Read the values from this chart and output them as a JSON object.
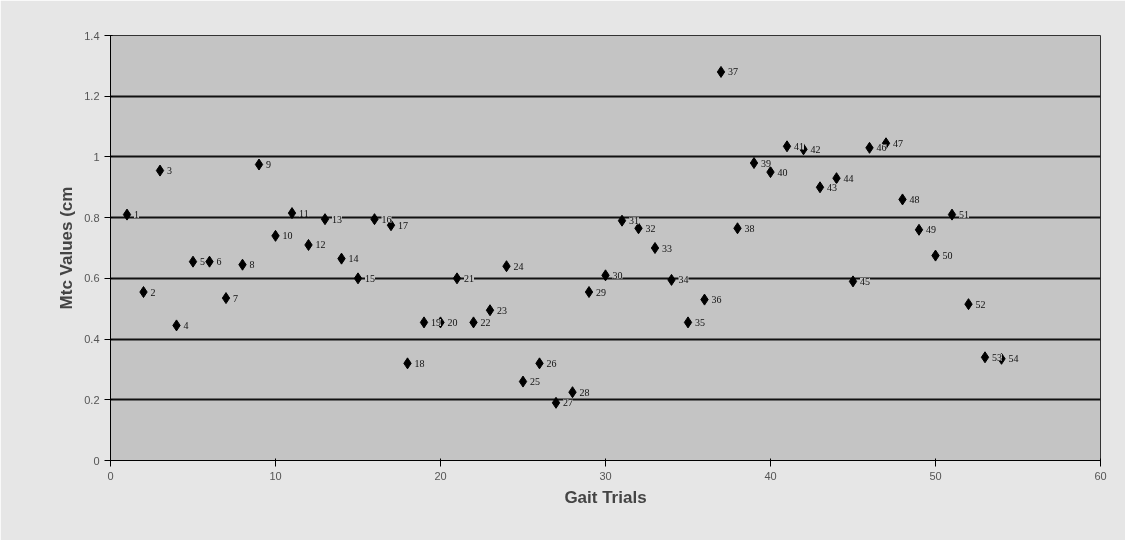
{
  "chart_data": {
    "type": "scatter",
    "xlabel": "Gait Trials",
    "ylabel": "Mtc Values (cm",
    "x": [
      1,
      2,
      3,
      4,
      5,
      6,
      7,
      8,
      9,
      10,
      11,
      12,
      13,
      14,
      15,
      16,
      17,
      18,
      19,
      20,
      21,
      22,
      23,
      24,
      25,
      26,
      27,
      28,
      29,
      30,
      31,
      32,
      33,
      34,
      35,
      36,
      37,
      38,
      39,
      40,
      41,
      42,
      43,
      44,
      45,
      46,
      47,
      48,
      49,
      50,
      51,
      52,
      53,
      54
    ],
    "series": [
      {
        "color": "#000000",
        "values": [
          0.81,
          0.555,
          0.955,
          0.445,
          0.655,
          0.655,
          0.535,
          0.645,
          0.975,
          0.74,
          0.815,
          0.71,
          0.795,
          0.665,
          0.6,
          0.795,
          0.775,
          0.32,
          0.455,
          0.455,
          0.6,
          0.455,
          0.495,
          0.64,
          0.26,
          0.32,
          0.19,
          0.225,
          0.555,
          0.61,
          0.79,
          0.765,
          0.7,
          0.595,
          0.455,
          0.53,
          1.28,
          0.765,
          0.98,
          0.95,
          1.035,
          1.025,
          0.9,
          0.93,
          0.59,
          1.03,
          1.045,
          0.86,
          0.76,
          0.675,
          0.81,
          0.515,
          0.34,
          0.335
        ]
      }
    ],
    "annotations": [
      {
        "text": "1",
        "x": 1,
        "y": 0.81
      },
      {
        "text": "2",
        "x": 2,
        "y": 0.555
      },
      {
        "text": "3",
        "x": 3,
        "y": 0.955
      },
      {
        "text": "4",
        "x": 4,
        "y": 0.445
      },
      {
        "text": "5",
        "x": 5,
        "y": 0.655
      },
      {
        "text": "6",
        "x": 6,
        "y": 0.655
      },
      {
        "text": "7",
        "x": 7,
        "y": 0.535
      },
      {
        "text": "8",
        "x": 8,
        "y": 0.645
      },
      {
        "text": "9",
        "x": 9,
        "y": 0.975
      },
      {
        "text": "10",
        "x": 10,
        "y": 0.74
      },
      {
        "text": "11",
        "x": 11,
        "y": 0.815
      },
      {
        "text": "12",
        "x": 12,
        "y": 0.71
      },
      {
        "text": "13",
        "x": 13,
        "y": 0.795
      },
      {
        "text": "14",
        "x": 14,
        "y": 0.665
      },
      {
        "text": "15",
        "x": 15,
        "y": 0.6
      },
      {
        "text": "16",
        "x": 16,
        "y": 0.795
      },
      {
        "text": "17",
        "x": 17,
        "y": 0.775
      },
      {
        "text": "18",
        "x": 18,
        "y": 0.32
      },
      {
        "text": "19",
        "x": 19,
        "y": 0.455
      },
      {
        "text": "20",
        "x": 20,
        "y": 0.455
      },
      {
        "text": "21",
        "x": 21,
        "y": 0.6
      },
      {
        "text": "22",
        "x": 22,
        "y": 0.455
      },
      {
        "text": "23",
        "x": 23,
        "y": 0.495
      },
      {
        "text": "24",
        "x": 24,
        "y": 0.64
      },
      {
        "text": "25",
        "x": 25,
        "y": 0.26
      },
      {
        "text": "26",
        "x": 26,
        "y": 0.32
      },
      {
        "text": "27",
        "x": 27,
        "y": 0.19
      },
      {
        "text": "28",
        "x": 28,
        "y": 0.225
      },
      {
        "text": "29",
        "x": 29,
        "y": 0.555
      },
      {
        "text": "30",
        "x": 30,
        "y": 0.61
      },
      {
        "text": "31",
        "x": 31,
        "y": 0.79
      },
      {
        "text": "32",
        "x": 32,
        "y": 0.765
      },
      {
        "text": "33",
        "x": 33,
        "y": 0.7
      },
      {
        "text": "34",
        "x": 34,
        "y": 0.595
      },
      {
        "text": "35",
        "x": 35,
        "y": 0.455
      },
      {
        "text": "36",
        "x": 36,
        "y": 0.53
      },
      {
        "text": "37",
        "x": 37,
        "y": 1.28
      },
      {
        "text": "38",
        "x": 38,
        "y": 0.765
      },
      {
        "text": "39",
        "x": 39,
        "y": 0.98
      },
      {
        "text": "40",
        "x": 40,
        "y": 0.95
      },
      {
        "text": "41",
        "x": 41,
        "y": 1.035
      },
      {
        "text": "42",
        "x": 42,
        "y": 1.025
      },
      {
        "text": "43",
        "x": 43,
        "y": 0.9
      },
      {
        "text": "44",
        "x": 44,
        "y": 0.93
      },
      {
        "text": "45",
        "x": 45,
        "y": 0.59
      },
      {
        "text": "46",
        "x": 46,
        "y": 1.03
      },
      {
        "text": "47",
        "x": 47,
        "y": 1.045
      },
      {
        "text": "48",
        "x": 48,
        "y": 0.86
      },
      {
        "text": "49",
        "x": 49,
        "y": 0.76
      },
      {
        "text": "50",
        "x": 50,
        "y": 0.675
      },
      {
        "text": "51",
        "x": 51,
        "y": 0.81
      },
      {
        "text": "52",
        "x": 52,
        "y": 0.515
      },
      {
        "text": "53",
        "x": 53,
        "y": 0.34
      },
      {
        "text": "54",
        "x": 54,
        "y": 0.335
      }
    ],
    "xlim": [
      0,
      60
    ],
    "xticks": [
      0,
      10,
      20,
      30,
      40,
      50,
      60
    ],
    "ylim": [
      0,
      1.4
    ],
    "yticks": [
      0,
      0.2,
      0.4,
      0.6,
      0.8,
      1,
      1.2,
      1.4
    ],
    "grid": "y",
    "marker": "diamond"
  }
}
